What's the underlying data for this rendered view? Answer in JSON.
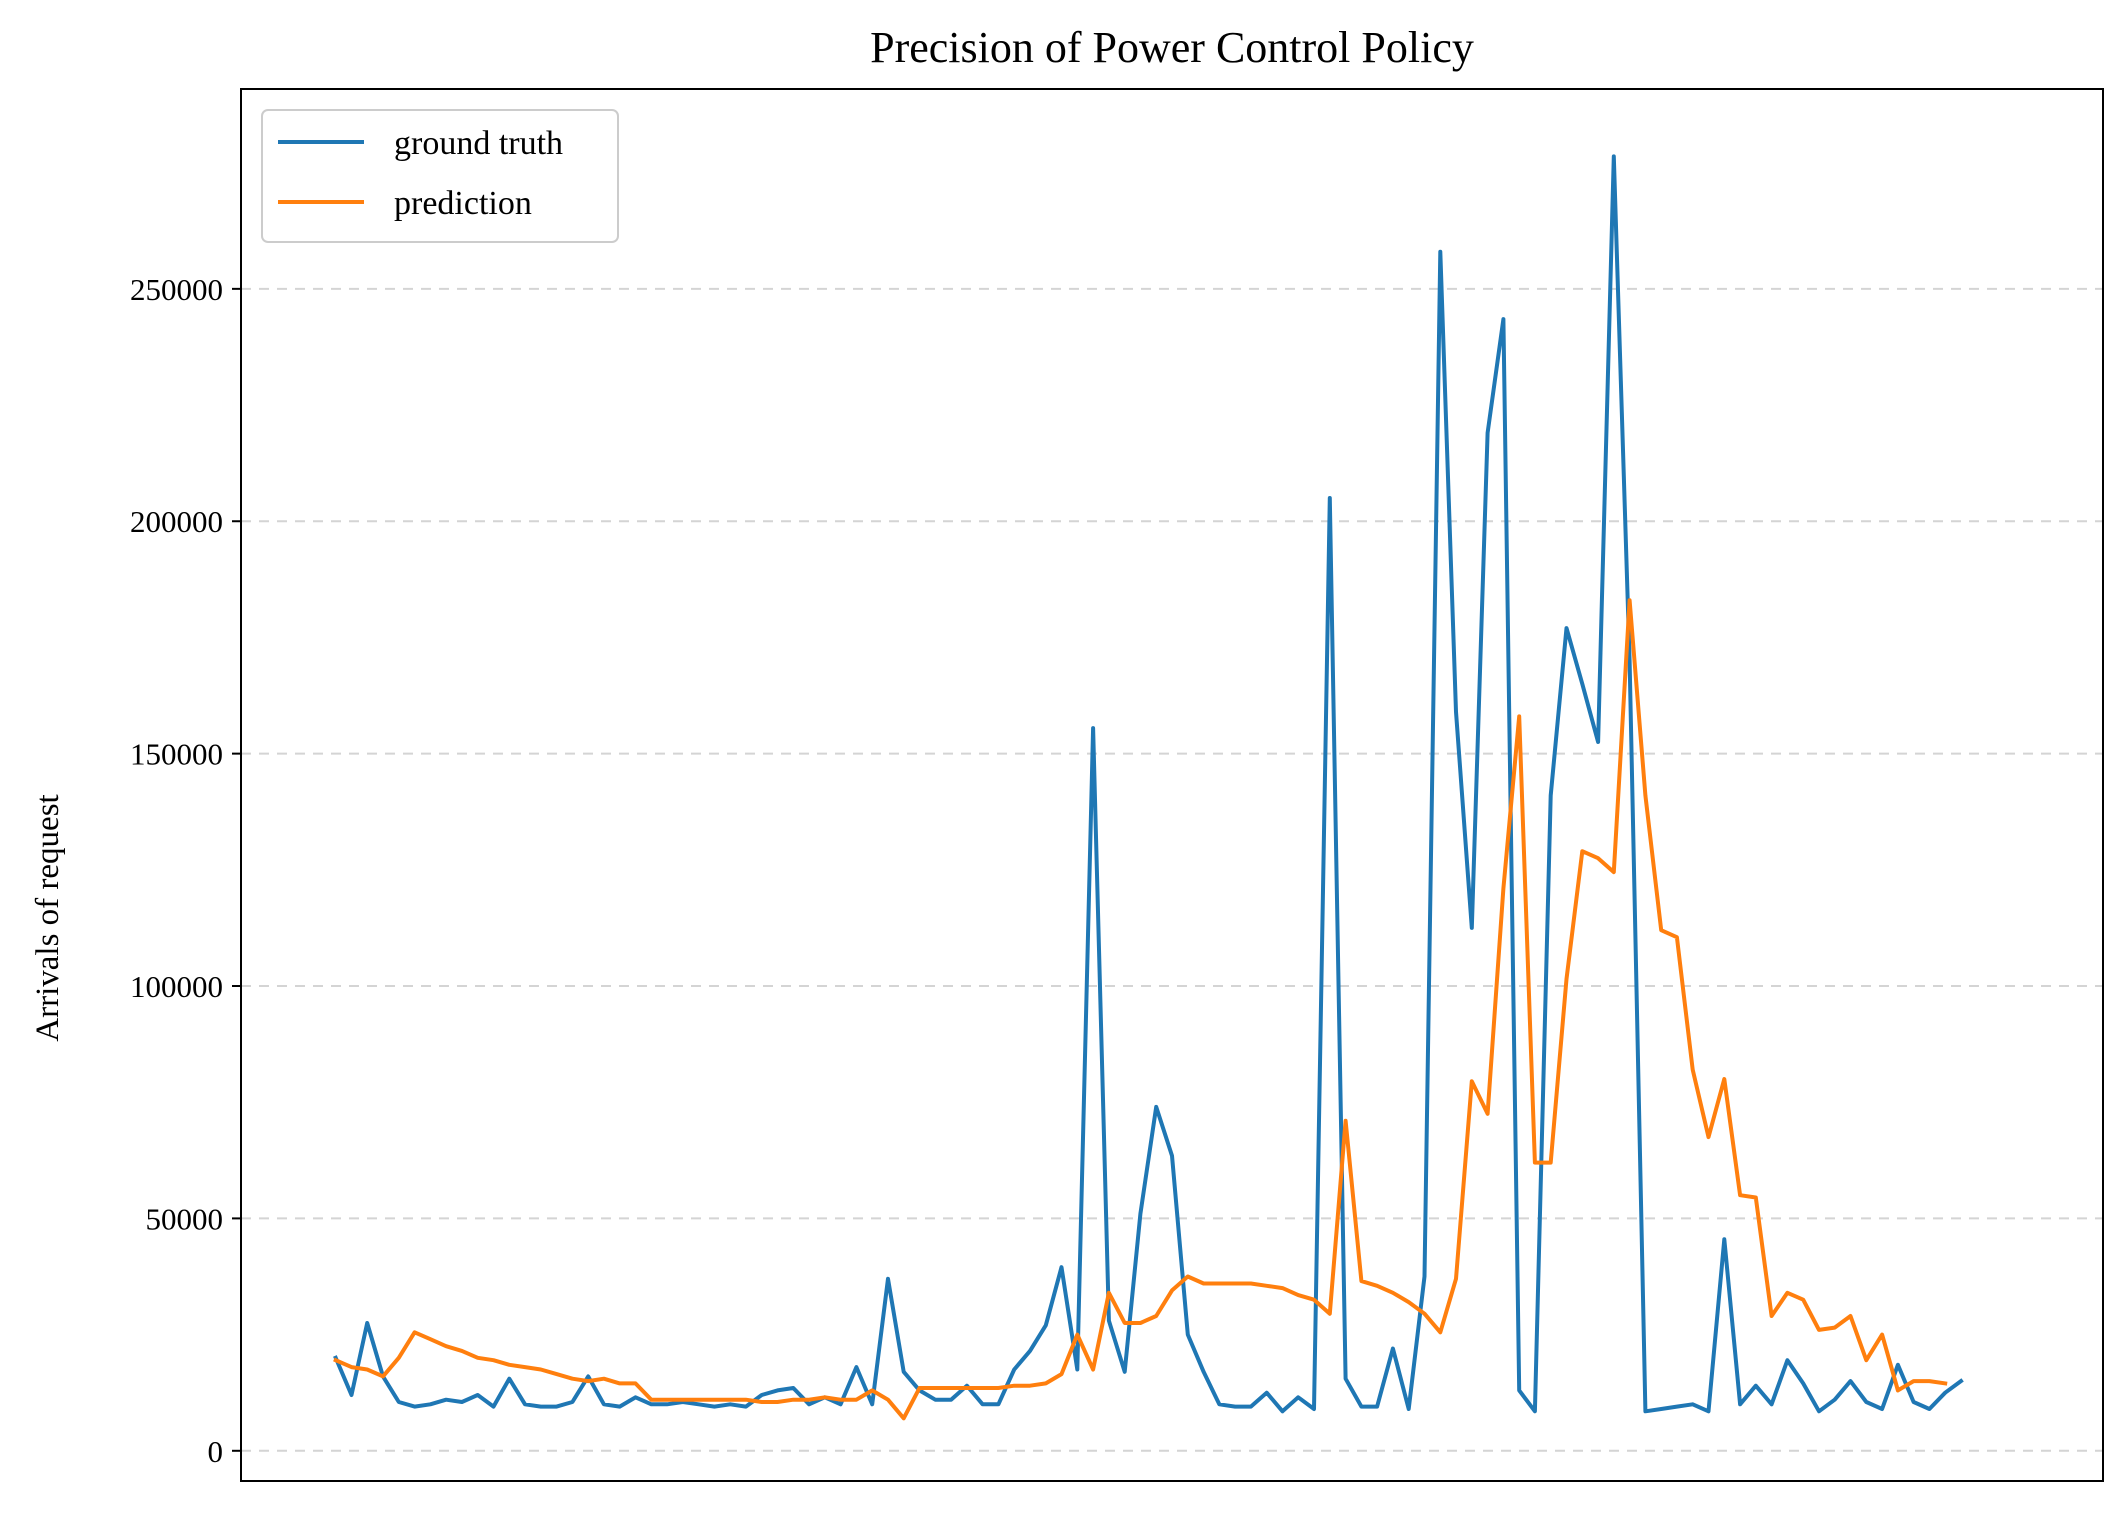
{
  "chart_data": {
    "type": "line",
    "title": "Precision of Power Control Policy",
    "xlabel": "",
    "ylabel": "Arrivals of request",
    "ylim": [
      -6500,
      293000
    ],
    "xlim": [
      -6,
      112
    ],
    "y_ticks": [
      0,
      50000,
      100000,
      150000,
      200000,
      250000
    ],
    "y_tick_labels": [
      "0",
      "50000",
      "100000",
      "150000",
      "200000",
      "250000"
    ],
    "grid": "horizontal, dashed",
    "legend_position": "top-left",
    "series": [
      {
        "name": "ground truth",
        "color": "#1f77b4",
        "values": [
          20000,
          12000,
          27500,
          16000,
          10500,
          9500,
          10000,
          11000,
          10500,
          12000,
          9500,
          15500,
          10000,
          9500,
          9500,
          10500,
          16000,
          10000,
          9500,
          11500,
          10000,
          10000,
          10500,
          10000,
          9500,
          10000,
          9500,
          12000,
          13000,
          13500,
          10000,
          11500,
          10000,
          18000,
          10000,
          37000,
          17000,
          13000,
          11000,
          11000,
          14000,
          10000,
          10000,
          17500,
          21500,
          27000,
          39500,
          17500,
          155500,
          28000,
          17000,
          51000,
          74000,
          63500,
          25000,
          17000,
          10000,
          9500,
          9500,
          12500,
          8500,
          11500,
          9000,
          205000,
          15500,
          9500,
          9500,
          22000,
          9000,
          37500,
          258000,
          159000,
          112500,
          219000,
          243500,
          13000,
          8500,
          141000,
          177000,
          165000,
          152500,
          278500,
          170000,
          8500,
          9000,
          9500,
          10000,
          8500,
          45500,
          10000,
          14000,
          10000,
          19500,
          14500,
          8500,
          11000,
          15000,
          10500,
          9000,
          18500,
          10500,
          9000,
          12500,
          15000
        ]
      },
      {
        "name": "prediction",
        "color": "#ff7f0e",
        "values": [
          19500,
          18000,
          17500,
          16000,
          20000,
          25500,
          24000,
          22500,
          21500,
          20000,
          19500,
          18500,
          18000,
          17500,
          16500,
          15500,
          15000,
          15500,
          14500,
          14500,
          11000,
          11000,
          11000,
          11000,
          11000,
          11000,
          11000,
          10500,
          10500,
          11000,
          11000,
          11500,
          11000,
          11000,
          13000,
          11000,
          7000,
          13500,
          13500,
          13500,
          13500,
          13500,
          13500,
          14000,
          14000,
          14500,
          16500,
          25000,
          17500,
          34000,
          27500,
          27500,
          29000,
          34500,
          37500,
          36000,
          36000,
          36000,
          36000,
          35500,
          35000,
          33500,
          32500,
          29500,
          71000,
          36500,
          35500,
          34000,
          32000,
          29500,
          25500,
          37000,
          79500,
          72500,
          121000,
          158000,
          62000,
          62000,
          101500,
          129000,
          127500,
          124500,
          183000,
          141000,
          112000,
          110500,
          82000,
          67500,
          80000,
          55000,
          54500,
          29000,
          34000,
          32500,
          26000,
          26500,
          29000,
          19500,
          25000,
          13000,
          15000,
          15000,
          14500
        ]
      }
    ]
  }
}
